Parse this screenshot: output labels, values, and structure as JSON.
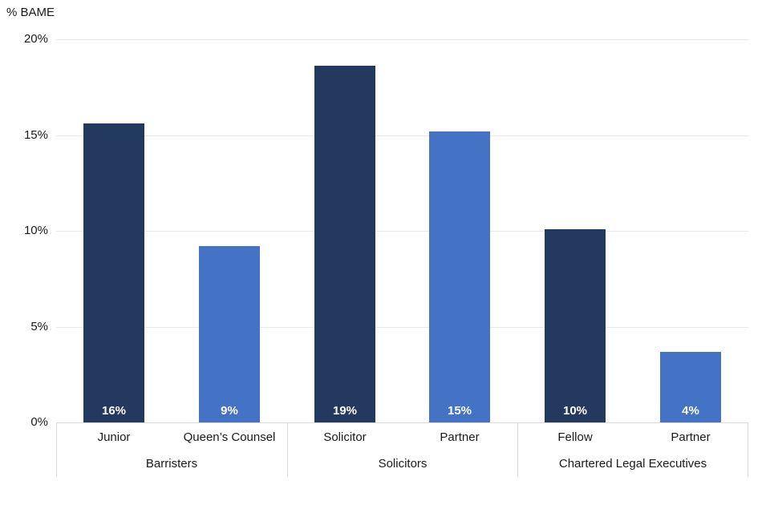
{
  "axis_title": "% BAME",
  "chart_data": {
    "type": "bar",
    "title": "% BAME",
    "axis_title": "% BAME",
    "ylim": [
      0,
      20
    ],
    "ytick_values": [
      0,
      5,
      10,
      15,
      20
    ],
    "ytick_labels": [
      "0%",
      "5%",
      "10%",
      "15%",
      "20%"
    ],
    "grid": true,
    "legend": "none",
    "categories": [
      "Junior",
      "Queen’s Counsel",
      "Solicitor",
      "Partner",
      "Fellow",
      "Partner"
    ],
    "group_labels": [
      "Barristers",
      "Solicitors",
      "Chartered Legal Executives"
    ],
    "values": [
      15.6,
      9.2,
      18.6,
      15.2,
      10.1,
      3.7
    ],
    "data_labels": [
      "16%",
      "9%",
      "19%",
      "15%",
      "10%",
      "4%"
    ],
    "groups": [
      {
        "label": "Barristers",
        "bars": [
          {
            "category": "Junior",
            "value": 15.6,
            "data_label": "16%",
            "color": "#233A5E"
          },
          {
            "category": "Queen’s Counsel",
            "value": 9.2,
            "data_label": "9%",
            "color": "#4472C4"
          }
        ]
      },
      {
        "label": "Solicitors",
        "bars": [
          {
            "category": "Solicitor",
            "value": 18.6,
            "data_label": "19%",
            "color": "#233A5E"
          },
          {
            "category": "Partner",
            "value": 15.2,
            "data_label": "15%",
            "color": "#4472C4"
          }
        ]
      },
      {
        "label": "Chartered Legal Executives",
        "bars": [
          {
            "category": "Fellow",
            "value": 10.1,
            "data_label": "10%",
            "color": "#233A5E"
          },
          {
            "category": "Partner",
            "value": 3.7,
            "data_label": "4%",
            "color": "#4472C4"
          }
        ]
      }
    ],
    "colors": {
      "dark_bar": "#233A5E",
      "light_bar": "#4472C4",
      "gridline": "#E9E9E9",
      "axis_line": "#D9D9D9",
      "bar_label_text": "#FFFFFF",
      "axis_text": "#1A1A1A"
    }
  }
}
